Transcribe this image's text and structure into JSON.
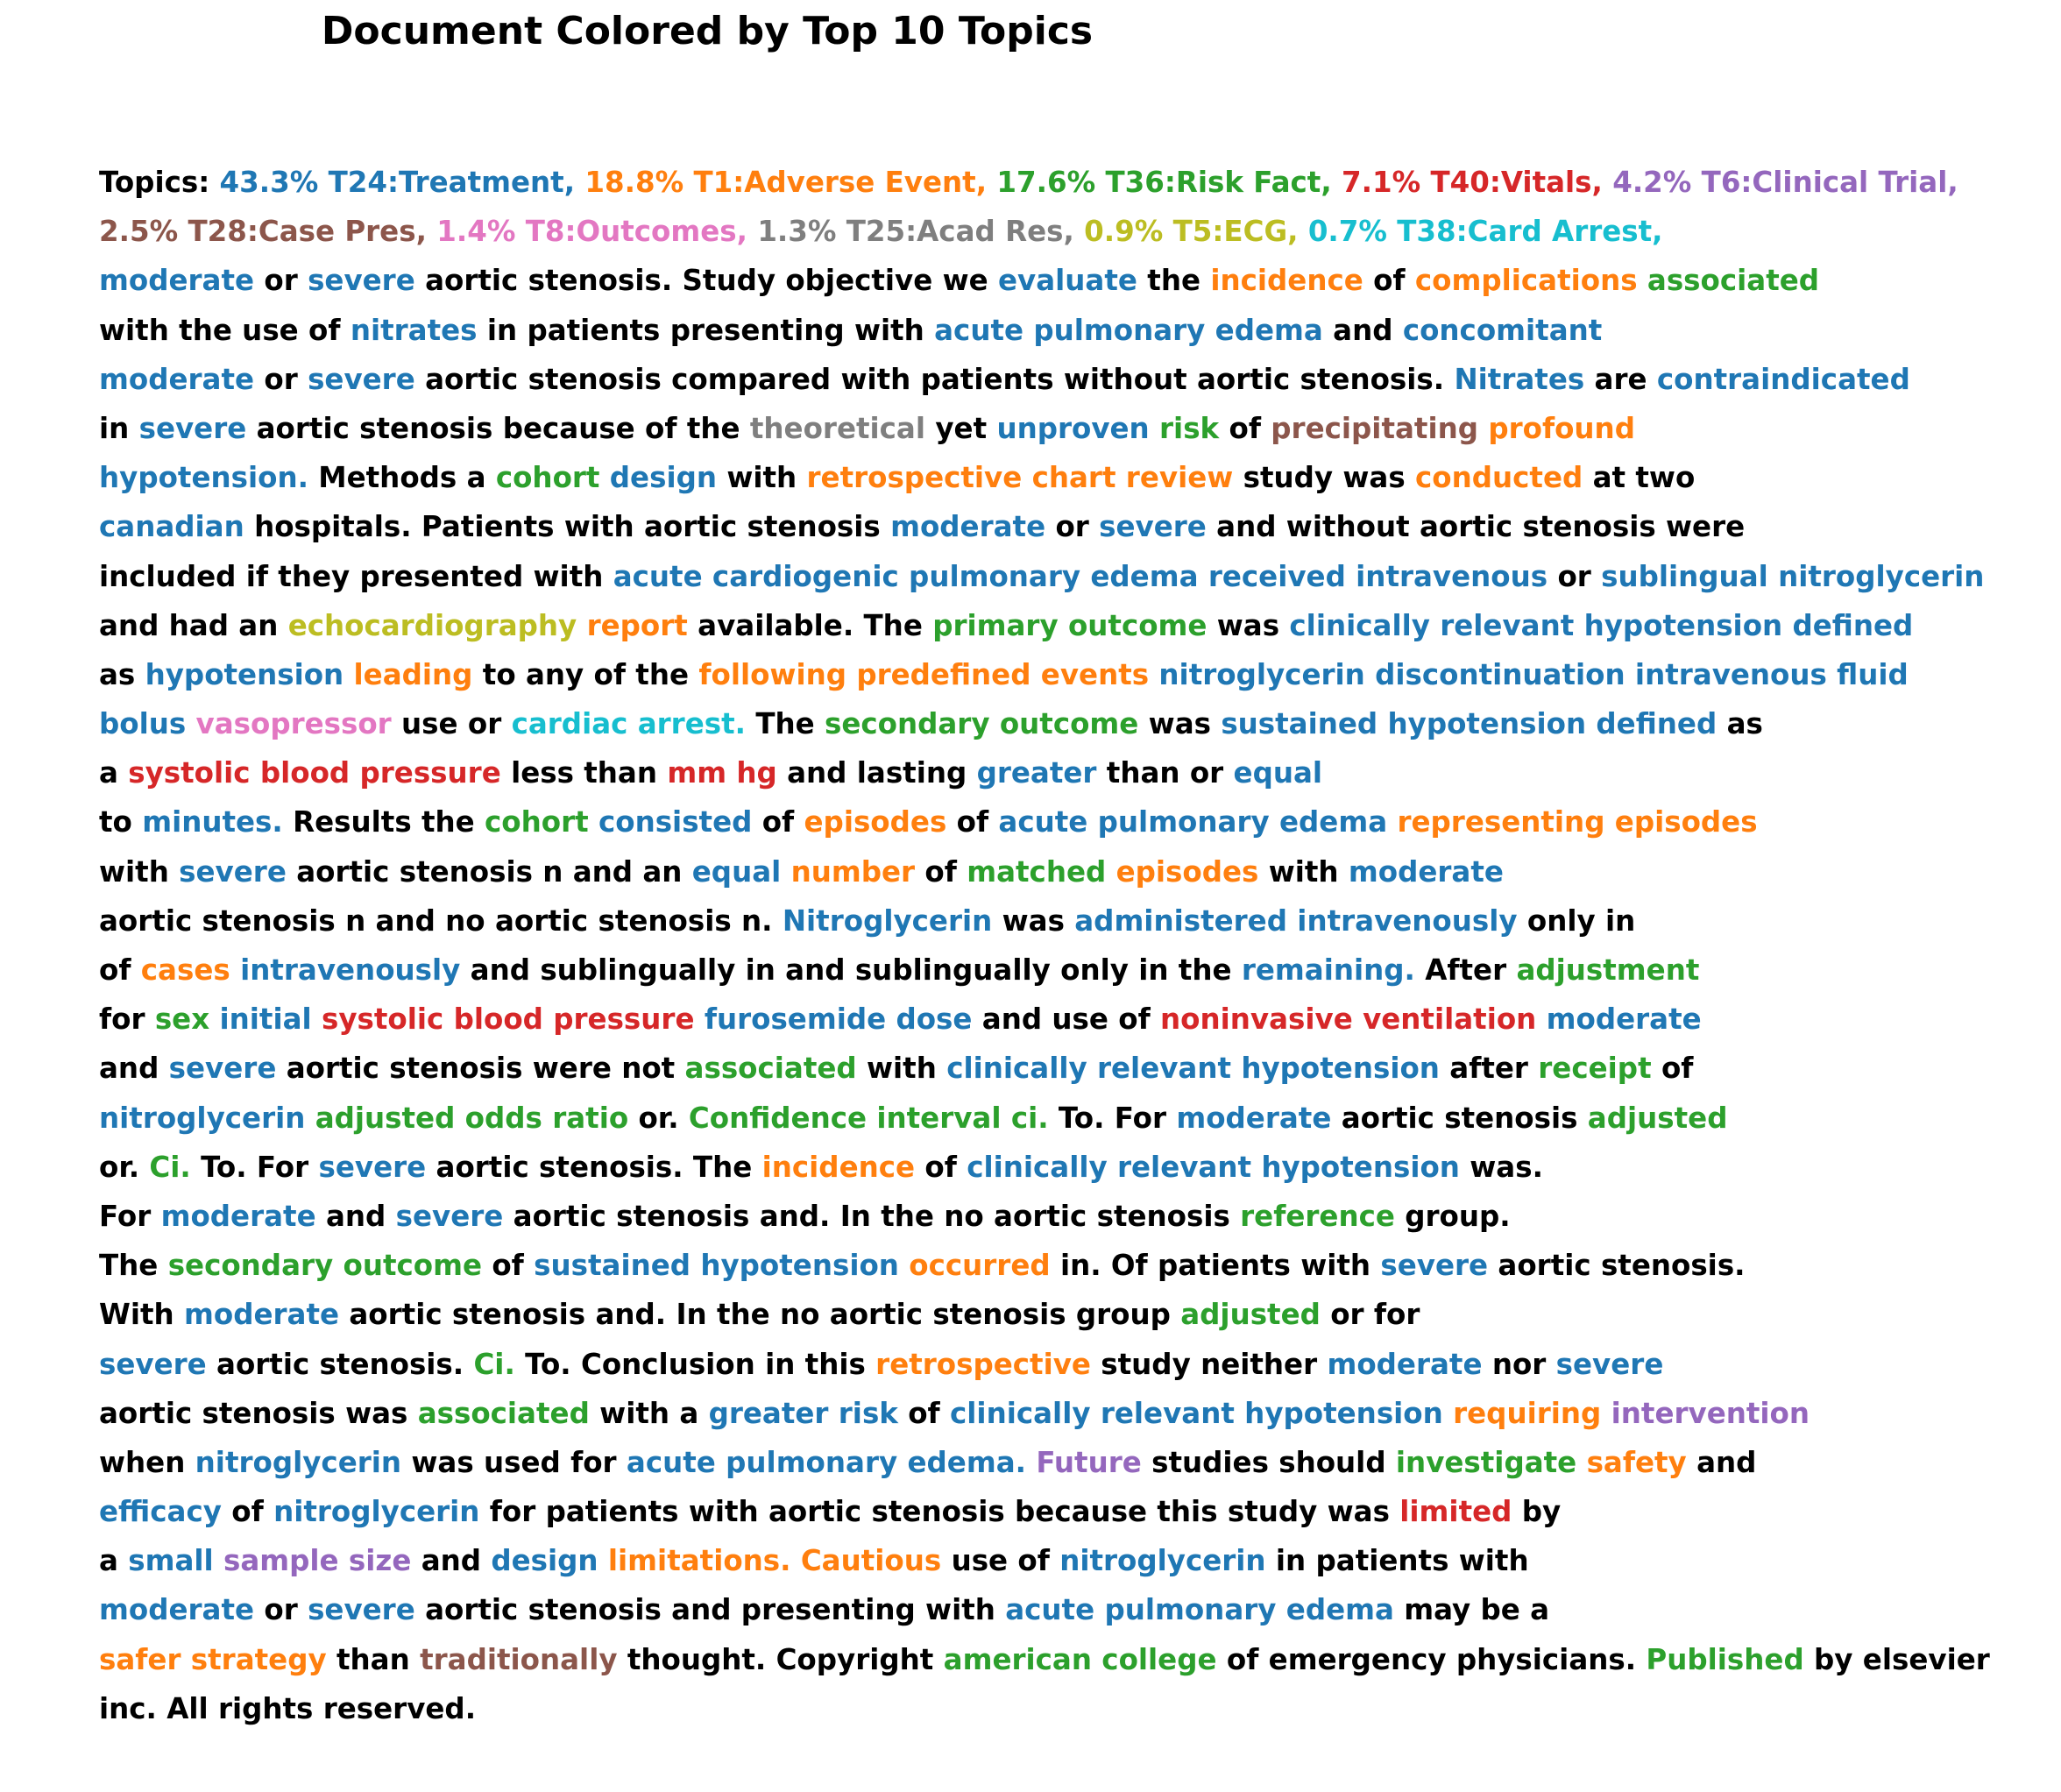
{
  "title": "Document Colored by Top 10 Topics",
  "colors": {
    "none": "#000000",
    "T24": "#1f77b4",
    "T1": "#ff7f0e",
    "T36": "#2ca02c",
    "T40": "#d62728",
    "T6": "#9467bd",
    "T28": "#8c564b",
    "T8": "#e377c2",
    "T25": "#7f7f7f",
    "T5": "#bcbd22",
    "T38": "#17becf"
  },
  "lines": [
    [
      [
        "Topics:",
        "none"
      ],
      [
        "43.3% T24:Treatment,",
        "T24"
      ],
      [
        "18.8% T1:Adverse Event,",
        "T1"
      ],
      [
        "17.6% T36:Risk Fact,",
        "T36"
      ],
      [
        "7.1% T40:Vitals,",
        "T40"
      ],
      [
        "4.2% T6:Clinical Trial,",
        "T6"
      ]
    ],
    [
      [
        "2.5% T28:Case Pres,",
        "T28"
      ],
      [
        "1.4% T8:Outcomes,",
        "T8"
      ],
      [
        "1.3% T25:Acad Res,",
        "T25"
      ],
      [
        "0.9% T5:ECG,",
        "T5"
      ],
      [
        "0.7% T38:Card Arrest,",
        "T38"
      ]
    ],
    [
      [
        "moderate",
        "T24"
      ],
      [
        "or",
        "none"
      ],
      [
        "severe",
        "T24"
      ],
      [
        "aortic stenosis. Study objective we",
        "none"
      ],
      [
        "evaluate",
        "T24"
      ],
      [
        "the",
        "none"
      ],
      [
        "incidence",
        "T1"
      ],
      [
        "of",
        "none"
      ],
      [
        "complications",
        "T1"
      ],
      [
        "associated",
        "T36"
      ]
    ],
    [
      [
        "with the use of",
        "none"
      ],
      [
        "nitrates",
        "T24"
      ],
      [
        "in patients presenting with",
        "none"
      ],
      [
        "acute pulmonary edema",
        "T24"
      ],
      [
        "and",
        "none"
      ],
      [
        "concomitant",
        "T24"
      ]
    ],
    [
      [
        "moderate",
        "T24"
      ],
      [
        "or",
        "none"
      ],
      [
        "severe",
        "T24"
      ],
      [
        "aortic stenosis compared with patients without aortic stenosis.",
        "none"
      ],
      [
        "Nitrates",
        "T24"
      ],
      [
        "are",
        "none"
      ],
      [
        "contraindicated",
        "T24"
      ]
    ],
    [
      [
        "in",
        "none"
      ],
      [
        "severe",
        "T24"
      ],
      [
        "aortic stenosis because of the",
        "none"
      ],
      [
        "theoretical",
        "T25"
      ],
      [
        "yet",
        "none"
      ],
      [
        "unproven",
        "T24"
      ],
      [
        "risk",
        "T36"
      ],
      [
        "of",
        "none"
      ],
      [
        "precipitating",
        "T28"
      ],
      [
        "profound",
        "T1"
      ]
    ],
    [
      [
        "hypotension.",
        "T24"
      ],
      [
        "Methods a",
        "none"
      ],
      [
        "cohort",
        "T36"
      ],
      [
        "design",
        "T24"
      ],
      [
        "with",
        "none"
      ],
      [
        "retrospective chart review",
        "T1"
      ],
      [
        "study was",
        "none"
      ],
      [
        "conducted",
        "T1"
      ],
      [
        "at two",
        "none"
      ]
    ],
    [
      [
        "canadian",
        "T24"
      ],
      [
        "hospitals. Patients with aortic stenosis",
        "none"
      ],
      [
        "moderate",
        "T24"
      ],
      [
        "or",
        "none"
      ],
      [
        "severe",
        "T24"
      ],
      [
        "and without aortic stenosis were",
        "none"
      ]
    ],
    [
      [
        "included if they presented with",
        "none"
      ],
      [
        "acute cardiogenic pulmonary edema received intravenous",
        "T24"
      ],
      [
        "or",
        "none"
      ],
      [
        "sublingual nitroglycerin",
        "T24"
      ]
    ],
    [
      [
        "and had an",
        "none"
      ],
      [
        "echocardiography",
        "T5"
      ],
      [
        "report",
        "T1"
      ],
      [
        "available. The",
        "none"
      ],
      [
        "primary outcome",
        "T36"
      ],
      [
        "was",
        "none"
      ],
      [
        "clinically relevant hypotension defined",
        "T24"
      ]
    ],
    [
      [
        "as",
        "none"
      ],
      [
        "hypotension",
        "T24"
      ],
      [
        "leading",
        "T1"
      ],
      [
        "to any of the",
        "none"
      ],
      [
        "following predefined events",
        "T1"
      ],
      [
        "nitroglycerin discontinuation intravenous fluid",
        "T24"
      ]
    ],
    [
      [
        "bolus",
        "T24"
      ],
      [
        "vasopressor",
        "T8"
      ],
      [
        "use or",
        "none"
      ],
      [
        "cardiac arrest.",
        "T38"
      ],
      [
        "The",
        "none"
      ],
      [
        "secondary outcome",
        "T36"
      ],
      [
        "was",
        "none"
      ],
      [
        "sustained hypotension defined",
        "T24"
      ],
      [
        "as",
        "none"
      ]
    ],
    [
      [
        "a",
        "none"
      ],
      [
        "systolic blood pressure",
        "T40"
      ],
      [
        "less than",
        "none"
      ],
      [
        "mm hg",
        "T40"
      ],
      [
        "and lasting",
        "none"
      ],
      [
        "greater",
        "T24"
      ],
      [
        "than or",
        "none"
      ],
      [
        "equal",
        "T24"
      ]
    ],
    [
      [
        "to",
        "none"
      ],
      [
        "minutes.",
        "T24"
      ],
      [
        "Results the",
        "none"
      ],
      [
        "cohort",
        "T36"
      ],
      [
        "consisted",
        "T24"
      ],
      [
        "of",
        "none"
      ],
      [
        "episodes",
        "T1"
      ],
      [
        "of",
        "none"
      ],
      [
        "acute pulmonary edema",
        "T24"
      ],
      [
        "representing episodes",
        "T1"
      ]
    ],
    [
      [
        "with",
        "none"
      ],
      [
        "severe",
        "T24"
      ],
      [
        "aortic stenosis n and an",
        "none"
      ],
      [
        "equal",
        "T24"
      ],
      [
        "number",
        "T1"
      ],
      [
        "of",
        "none"
      ],
      [
        "matched",
        "T36"
      ],
      [
        "episodes",
        "T1"
      ],
      [
        "with",
        "none"
      ],
      [
        "moderate",
        "T24"
      ]
    ],
    [
      [
        "aortic stenosis n and no aortic stenosis n.",
        "none"
      ],
      [
        "Nitroglycerin",
        "T24"
      ],
      [
        "was",
        "none"
      ],
      [
        "administered intravenously",
        "T24"
      ],
      [
        "only in",
        "none"
      ]
    ],
    [
      [
        "of",
        "none"
      ],
      [
        "cases",
        "T1"
      ],
      [
        "intravenously",
        "T24"
      ],
      [
        "and sublingually in and sublingually only in the",
        "none"
      ],
      [
        "remaining.",
        "T24"
      ],
      [
        "After",
        "none"
      ],
      [
        "adjustment",
        "T36"
      ]
    ],
    [
      [
        "for",
        "none"
      ],
      [
        "sex",
        "T36"
      ],
      [
        "initial",
        "T24"
      ],
      [
        "systolic blood pressure",
        "T40"
      ],
      [
        "furosemide dose",
        "T24"
      ],
      [
        "and use of",
        "none"
      ],
      [
        "noninvasive ventilation",
        "T40"
      ],
      [
        "moderate",
        "T24"
      ]
    ],
    [
      [
        "and",
        "none"
      ],
      [
        "severe",
        "T24"
      ],
      [
        "aortic stenosis were not",
        "none"
      ],
      [
        "associated",
        "T36"
      ],
      [
        "with",
        "none"
      ],
      [
        "clinically relevant hypotension",
        "T24"
      ],
      [
        "after",
        "none"
      ],
      [
        "receipt",
        "T36"
      ],
      [
        "of",
        "none"
      ]
    ],
    [
      [
        "nitroglycerin",
        "T24"
      ],
      [
        "adjusted odds ratio",
        "T36"
      ],
      [
        "or.",
        "none"
      ],
      [
        "Confidence interval ci.",
        "T36"
      ],
      [
        "To. For",
        "none"
      ],
      [
        "moderate",
        "T24"
      ],
      [
        "aortic stenosis",
        "none"
      ],
      [
        "adjusted",
        "T36"
      ]
    ],
    [
      [
        "or.",
        "none"
      ],
      [
        "Ci.",
        "T36"
      ],
      [
        "To. For",
        "none"
      ],
      [
        "severe",
        "T24"
      ],
      [
        "aortic stenosis. The",
        "none"
      ],
      [
        "incidence",
        "T1"
      ],
      [
        "of",
        "none"
      ],
      [
        "clinically relevant hypotension",
        "T24"
      ],
      [
        "was.",
        "none"
      ]
    ],
    [
      [
        "For",
        "none"
      ],
      [
        "moderate",
        "T24"
      ],
      [
        "and",
        "none"
      ],
      [
        "severe",
        "T24"
      ],
      [
        "aortic stenosis and. In the no aortic stenosis",
        "none"
      ],
      [
        "reference",
        "T36"
      ],
      [
        "group.",
        "none"
      ]
    ],
    [
      [
        "The",
        "none"
      ],
      [
        "secondary outcome",
        "T36"
      ],
      [
        "of",
        "none"
      ],
      [
        "sustained hypotension",
        "T24"
      ],
      [
        "occurred",
        "T1"
      ],
      [
        "in. Of patients with",
        "none"
      ],
      [
        "severe",
        "T24"
      ],
      [
        "aortic stenosis.",
        "none"
      ]
    ],
    [
      [
        "With",
        "none"
      ],
      [
        "moderate",
        "T24"
      ],
      [
        "aortic stenosis and. In the no aortic stenosis group",
        "none"
      ],
      [
        "adjusted",
        "T36"
      ],
      [
        "or for",
        "none"
      ]
    ],
    [
      [
        "severe",
        "T24"
      ],
      [
        "aortic stenosis.",
        "none"
      ],
      [
        "Ci.",
        "T36"
      ],
      [
        "To. Conclusion in this",
        "none"
      ],
      [
        "retrospective",
        "T1"
      ],
      [
        "study neither",
        "none"
      ],
      [
        "moderate",
        "T24"
      ],
      [
        "nor",
        "none"
      ],
      [
        "severe",
        "T24"
      ]
    ],
    [
      [
        "aortic stenosis was",
        "none"
      ],
      [
        "associated",
        "T36"
      ],
      [
        "with a",
        "none"
      ],
      [
        "greater risk",
        "T24"
      ],
      [
        "of",
        "none"
      ],
      [
        "clinically relevant hypotension",
        "T24"
      ],
      [
        "requiring",
        "T1"
      ],
      [
        "intervention",
        "T6"
      ]
    ],
    [
      [
        "when",
        "none"
      ],
      [
        "nitroglycerin",
        "T24"
      ],
      [
        "was used for",
        "none"
      ],
      [
        "acute pulmonary edema.",
        "T24"
      ],
      [
        "Future",
        "T6"
      ],
      [
        "studies should",
        "none"
      ],
      [
        "investigate",
        "T36"
      ],
      [
        "safety",
        "T1"
      ],
      [
        "and",
        "none"
      ]
    ],
    [
      [
        "efficacy",
        "T24"
      ],
      [
        "of",
        "none"
      ],
      [
        "nitroglycerin",
        "T24"
      ],
      [
        "for patients with aortic stenosis because this study was",
        "none"
      ],
      [
        "limited",
        "T40"
      ],
      [
        "by",
        "none"
      ]
    ],
    [
      [
        "a",
        "none"
      ],
      [
        "small",
        "T24"
      ],
      [
        "sample size",
        "T6"
      ],
      [
        "and",
        "none"
      ],
      [
        "design",
        "T24"
      ],
      [
        "limitations.",
        "T1"
      ],
      [
        "Cautious",
        "T1"
      ],
      [
        "use of",
        "none"
      ],
      [
        "nitroglycerin",
        "T24"
      ],
      [
        "in patients with",
        "none"
      ]
    ],
    [
      [
        "moderate",
        "T24"
      ],
      [
        "or",
        "none"
      ],
      [
        "severe",
        "T24"
      ],
      [
        "aortic stenosis and presenting with",
        "none"
      ],
      [
        "acute pulmonary edema",
        "T24"
      ],
      [
        "may be a",
        "none"
      ]
    ],
    [
      [
        "safer strategy",
        "T1"
      ],
      [
        "than",
        "none"
      ],
      [
        "traditionally",
        "T28"
      ],
      [
        "thought. Copyright",
        "none"
      ],
      [
        "american college",
        "T36"
      ],
      [
        "of emergency physicians.",
        "none"
      ],
      [
        "Published",
        "T36"
      ],
      [
        "by elsevier",
        "none"
      ]
    ],
    [
      [
        "inc. All rights reserved.",
        "none"
      ]
    ]
  ]
}
